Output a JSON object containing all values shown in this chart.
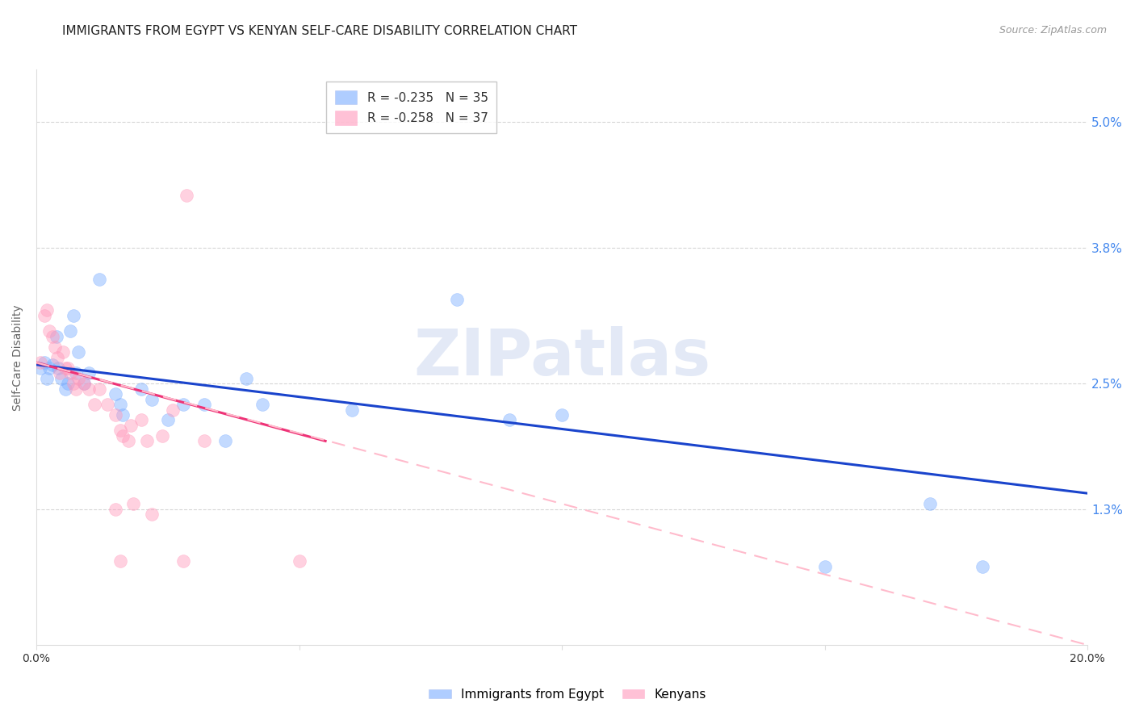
{
  "title": "IMMIGRANTS FROM EGYPT VS KENYAN SELF-CARE DISABILITY CORRELATION CHART",
  "source": "Source: ZipAtlas.com",
  "ylabel": "Self-Care Disability",
  "right_ytick_vals": [
    0.013,
    0.025,
    0.038,
    0.05
  ],
  "right_ytick_labels": [
    "1.3%",
    "2.5%",
    "3.8%",
    "5.0%"
  ],
  "xlim": [
    0.0,
    0.2
  ],
  "ylim": [
    0.0,
    0.055
  ],
  "blue_color": "#7aadff",
  "pink_color": "#ff99bb",
  "trendline_blue": "#1a44cc",
  "trendline_pink": "#ee3377",
  "trendline_pink_dash_color": "#ffbbcc",
  "watermark_text": "ZIPatlas",
  "grid_color": "#cccccc",
  "background_color": "#ffffff",
  "title_fontsize": 11,
  "axis_label_fontsize": 10,
  "tick_fontsize": 10,
  "legend_fontsize": 10,
  "marker_size": 130,
  "marker_alpha": 0.45,
  "blue_points": [
    [
      0.0008,
      0.0265
    ],
    [
      0.0015,
      0.027
    ],
    [
      0.002,
      0.0255
    ],
    [
      0.0025,
      0.0265
    ],
    [
      0.003,
      0.0268
    ],
    [
      0.0038,
      0.0295
    ],
    [
      0.0042,
      0.0265
    ],
    [
      0.0048,
      0.0255
    ],
    [
      0.0055,
      0.0245
    ],
    [
      0.006,
      0.025
    ],
    [
      0.0065,
      0.03
    ],
    [
      0.007,
      0.0315
    ],
    [
      0.0075,
      0.026
    ],
    [
      0.008,
      0.028
    ],
    [
      0.009,
      0.025
    ],
    [
      0.01,
      0.026
    ],
    [
      0.012,
      0.035
    ],
    [
      0.015,
      0.024
    ],
    [
      0.016,
      0.023
    ],
    [
      0.0165,
      0.022
    ],
    [
      0.02,
      0.0245
    ],
    [
      0.022,
      0.0235
    ],
    [
      0.025,
      0.0215
    ],
    [
      0.028,
      0.023
    ],
    [
      0.032,
      0.023
    ],
    [
      0.036,
      0.0195
    ],
    [
      0.04,
      0.0255
    ],
    [
      0.043,
      0.023
    ],
    [
      0.06,
      0.0225
    ],
    [
      0.08,
      0.033
    ],
    [
      0.09,
      0.0215
    ],
    [
      0.1,
      0.022
    ],
    [
      0.15,
      0.0075
    ],
    [
      0.17,
      0.0135
    ],
    [
      0.18,
      0.0075
    ]
  ],
  "pink_points": [
    [
      0.0008,
      0.027
    ],
    [
      0.0015,
      0.0315
    ],
    [
      0.002,
      0.032
    ],
    [
      0.0025,
      0.03
    ],
    [
      0.003,
      0.0295
    ],
    [
      0.0035,
      0.0285
    ],
    [
      0.004,
      0.0275
    ],
    [
      0.0045,
      0.026
    ],
    [
      0.005,
      0.028
    ],
    [
      0.0055,
      0.0265
    ],
    [
      0.006,
      0.0265
    ],
    [
      0.0065,
      0.026
    ],
    [
      0.007,
      0.025
    ],
    [
      0.0075,
      0.0245
    ],
    [
      0.008,
      0.0255
    ],
    [
      0.009,
      0.025
    ],
    [
      0.01,
      0.0245
    ],
    [
      0.011,
      0.023
    ],
    [
      0.012,
      0.0245
    ],
    [
      0.0135,
      0.023
    ],
    [
      0.015,
      0.022
    ],
    [
      0.016,
      0.0205
    ],
    [
      0.0165,
      0.02
    ],
    [
      0.0175,
      0.0195
    ],
    [
      0.018,
      0.021
    ],
    [
      0.02,
      0.0215
    ],
    [
      0.021,
      0.0195
    ],
    [
      0.024,
      0.02
    ],
    [
      0.026,
      0.0225
    ],
    [
      0.0285,
      0.043
    ],
    [
      0.032,
      0.0195
    ],
    [
      0.015,
      0.013
    ],
    [
      0.0185,
      0.0135
    ],
    [
      0.022,
      0.0125
    ],
    [
      0.016,
      0.008
    ],
    [
      0.028,
      0.008
    ],
    [
      0.05,
      0.008
    ]
  ],
  "blue_trend_x": [
    0.0,
    0.2
  ],
  "blue_trend_y": [
    0.0268,
    0.0145
  ],
  "pink_solid_trend_x": [
    0.0,
    0.055
  ],
  "pink_solid_trend_y": [
    0.027,
    0.0195
  ],
  "pink_dash_trend_x": [
    0.0,
    0.2
  ],
  "pink_dash_trend_y": [
    0.027,
    0.0
  ]
}
